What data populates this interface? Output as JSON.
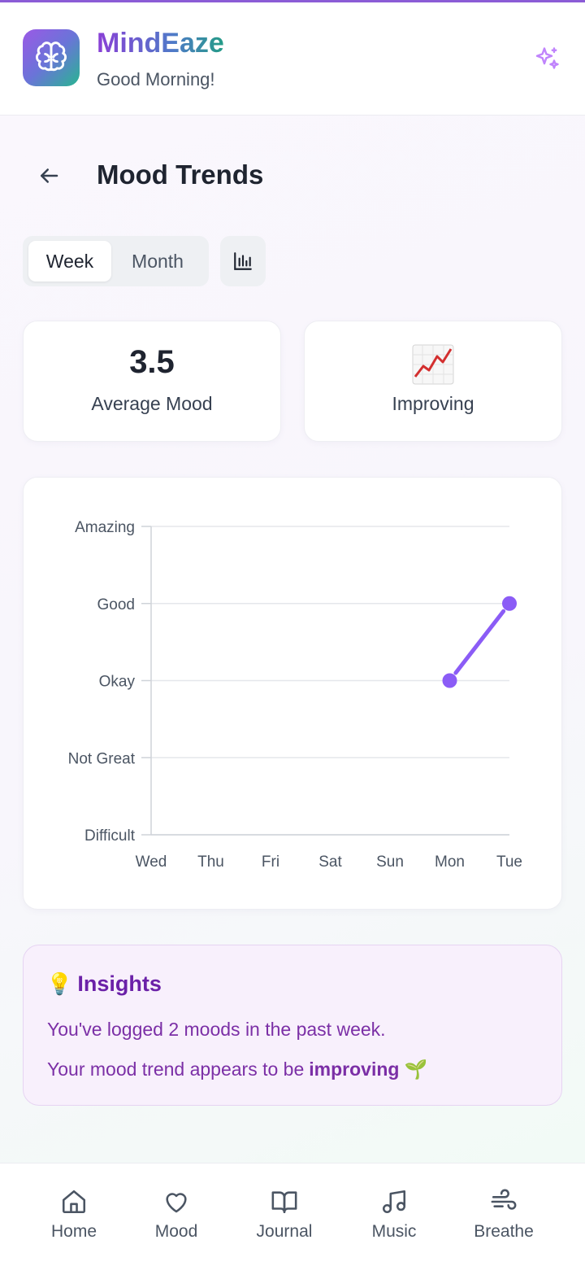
{
  "app": {
    "title": "MindEaze",
    "greeting": "Good Morning!"
  },
  "page": {
    "title": "Mood Trends"
  },
  "view_toggle": {
    "options": [
      "Week",
      "Month"
    ],
    "selected": "Week"
  },
  "stats": {
    "average": {
      "value": "3.5",
      "label": "Average Mood"
    },
    "trend": {
      "emoji": "📈",
      "label": "Improving"
    }
  },
  "chart_data": {
    "type": "line",
    "x": [
      "Wed",
      "Thu",
      "Fri",
      "Sat",
      "Sun",
      "Mon",
      "Tue"
    ],
    "y_levels": [
      "Difficult",
      "Not Great",
      "Okay",
      "Good",
      "Amazing"
    ],
    "ylim": [
      1,
      5
    ],
    "series": [
      {
        "values": [
          null,
          null,
          null,
          null,
          null,
          3,
          4
        ]
      }
    ],
    "grid": true,
    "color": "#8b5cf6"
  },
  "insights": {
    "icon": "💡",
    "title": "Insights",
    "line1": "You've logged 2 moods in the past week.",
    "line2_prefix": "Your mood trend appears to be",
    "line2_strong": "improving",
    "line2_emoji": "🌱"
  },
  "nav": {
    "items": [
      {
        "label": "Home",
        "icon": "home-icon"
      },
      {
        "label": "Mood",
        "icon": "heart-icon"
      },
      {
        "label": "Journal",
        "icon": "book-icon"
      },
      {
        "label": "Music",
        "icon": "music-icon"
      },
      {
        "label": "Breathe",
        "icon": "wind-icon"
      }
    ]
  },
  "colors": {
    "accent": "#8b5cf6",
    "insight_text": "#7b2fa6"
  }
}
